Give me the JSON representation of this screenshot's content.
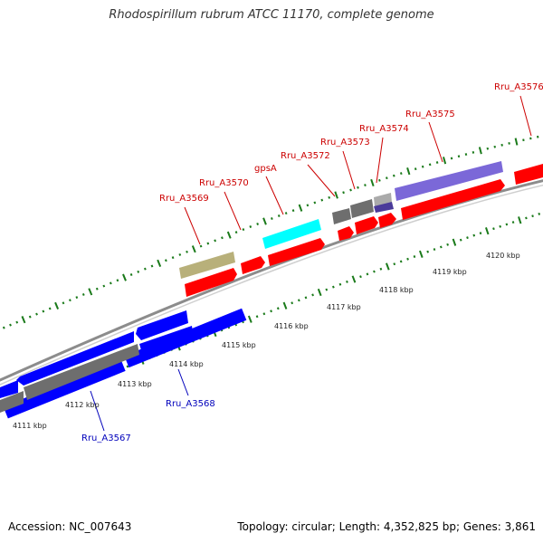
{
  "title": "Rhodospirillum rubrum ATCC 11170, complete genome",
  "footer": {
    "accession": "Accession: NC_007643",
    "summary": "Topology: circular; Length: 4,352,825 bp; Genes: 3,861"
  },
  "colors": {
    "backbone": "#8c8c8c",
    "tick": "#1a7a1a",
    "forward_gene": "#ff0000",
    "reverse_gene": "#0000ff",
    "gray_gene": "#6e6e6e",
    "cyan_gene": "#00ffff",
    "olive_gene": "#b8b07a",
    "purple_gene": "#7b68d8",
    "label_forward": "#cc0000",
    "label_reverse": "#0000bb"
  },
  "scale_labels": [
    "4111 kbp",
    "4112 kbp",
    "4113 kbp",
    "4114 kbp",
    "4115 kbp",
    "4116 kbp",
    "4117 kbp",
    "4118 kbp",
    "4119 kbp",
    "4120 kbp"
  ],
  "gene_labels": [
    {
      "text": "Rru_A3567",
      "strand": "reverse"
    },
    {
      "text": "Rru_A3568",
      "strand": "reverse"
    },
    {
      "text": "Rru_A3569",
      "strand": "forward"
    },
    {
      "text": "Rru_A3570",
      "strand": "forward"
    },
    {
      "text": "gpsA",
      "strand": "forward"
    },
    {
      "text": "Rru_A3572",
      "strand": "forward"
    },
    {
      "text": "Rru_A3573",
      "strand": "forward"
    },
    {
      "text": "Rru_A3574",
      "strand": "forward"
    },
    {
      "text": "Rru_A3575",
      "strand": "forward"
    },
    {
      "text": "Rru_A3576",
      "strand": "forward"
    }
  ]
}
